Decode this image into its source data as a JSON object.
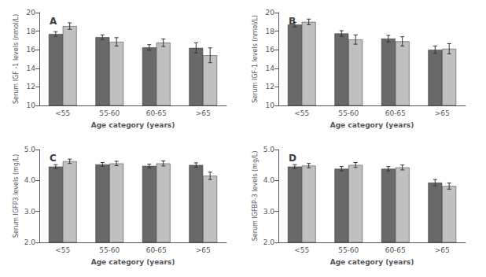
{
  "chart_data": [
    {
      "type": "bar",
      "title": "A",
      "categories": [
        "<55",
        "55-60",
        "60-65",
        ">65"
      ],
      "series": [
        {
          "color": "#696969",
          "values": [
            17.7,
            17.35,
            16.25,
            16.2
          ],
          "errors": [
            0.25,
            0.25,
            0.3,
            0.55
          ]
        },
        {
          "color": "#c0c0c0",
          "values": [
            18.55,
            16.85,
            16.75,
            15.4
          ],
          "errors": [
            0.35,
            0.45,
            0.4,
            0.8
          ]
        }
      ],
      "ylabel": "Serum IGF -1 levels (nmol/L)",
      "xlabel": "Age category (years)",
      "ylim": [
        10,
        20
      ],
      "yticks": [
        10,
        12,
        14,
        16,
        18,
        20
      ],
      "grid": false
    },
    {
      "type": "bar",
      "title": "B",
      "categories": [
        "<55",
        "55-60",
        "60-65",
        ">65"
      ],
      "series": [
        {
          "color": "#696969",
          "values": [
            18.7,
            17.75,
            17.2,
            16.0
          ],
          "errors": [
            0.25,
            0.3,
            0.35,
            0.4
          ]
        },
        {
          "color": "#c0c0c0",
          "values": [
            19.0,
            17.1,
            16.9,
            16.1
          ],
          "errors": [
            0.3,
            0.5,
            0.5,
            0.55
          ]
        }
      ],
      "ylabel": "Serum IGF-1 levels (nmol/L)",
      "xlabel": "Age category (years)",
      "ylim": [
        10,
        20
      ],
      "yticks": [
        10,
        12,
        14,
        16,
        18,
        20
      ],
      "grid": false
    },
    {
      "type": "bar",
      "title": "C",
      "categories": [
        "<55",
        "55-60",
        "60-65",
        ">65"
      ],
      "series": [
        {
          "color": "#696969",
          "values": [
            4.45,
            4.52,
            4.47,
            4.5
          ],
          "errors": [
            0.06,
            0.06,
            0.06,
            0.07
          ]
        },
        {
          "color": "#c0c0c0",
          "values": [
            4.62,
            4.55,
            4.55,
            4.15
          ],
          "errors": [
            0.07,
            0.07,
            0.08,
            0.12
          ]
        }
      ],
      "ylabel": "Serum IGFP3 levels (mg/L)",
      "xlabel": "Age category (years)",
      "ylim": [
        2.0,
        5.0
      ],
      "yticks": [
        {
          "value": 2.0,
          "label": "2.0"
        },
        {
          "value": 3.0,
          "label": "3.0"
        },
        {
          "value": 4.0,
          "label": "4.0"
        },
        {
          "value": 5.0,
          "label": "5.0"
        }
      ],
      "grid": false
    },
    {
      "type": "bar",
      "title": "D",
      "categories": [
        "<55",
        "55-60",
        "60-65",
        ">65"
      ],
      "series": [
        {
          "color": "#696969",
          "values": [
            4.45,
            4.38,
            4.38,
            3.93
          ],
          "errors": [
            0.06,
            0.07,
            0.07,
            0.1
          ]
        },
        {
          "color": "#c0c0c0",
          "values": [
            4.48,
            4.5,
            4.42,
            3.82
          ],
          "errors": [
            0.07,
            0.08,
            0.08,
            0.1
          ]
        }
      ],
      "ylabel": "Serum IGFBP-3 levels (mg/L)",
      "xlabel": "Age category (years)",
      "ylim": [
        2.0,
        5.0
      ],
      "yticks": [
        {
          "value": 2.0,
          "label": "2.0"
        },
        {
          "value": 3.0,
          "label": "3.0"
        },
        {
          "value": 4.0,
          "label": "4.0"
        },
        {
          "value": 5.0,
          "label": "5.0"
        }
      ],
      "grid": false
    }
  ]
}
